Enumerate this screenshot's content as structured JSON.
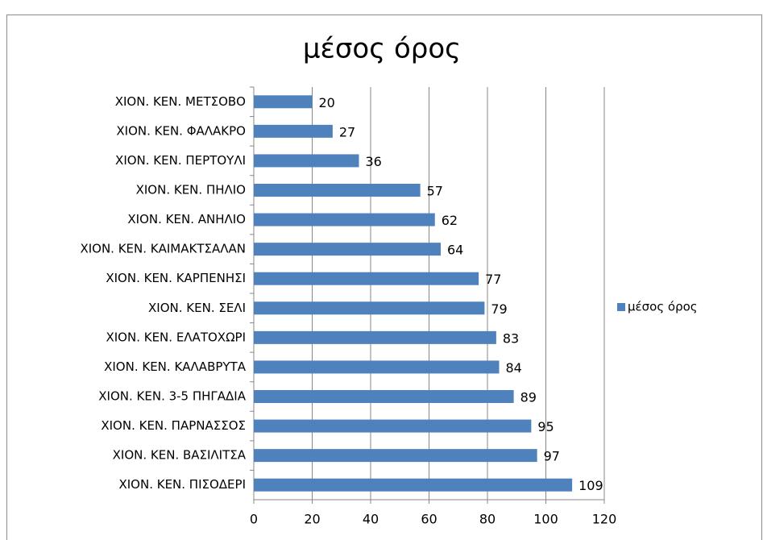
{
  "chart_data": {
    "type": "bar",
    "orientation": "horizontal",
    "title": "μέσος όρος",
    "categories": [
      "ΧΙΟΝ. ΚΕΝ. ΜΕΤΣΟΒΟ",
      "ΧΙΟΝ. ΚΕΝ. ΦΑΛΑΚΡΟ",
      "ΧΙΟΝ. ΚΕΝ. ΠΕΡΤΟΥΛΙ",
      "ΧΙΟΝ. ΚΕΝ. ΠΗΛΙΟ",
      "ΧΙΟΝ. ΚΕΝ. ΑΝΗΛΙΟ",
      "ΧΙΟΝ. ΚΕΝ. ΚΑΙΜΑΚΤΣΑΛΑΝ",
      "ΧΙΟΝ. ΚΕΝ. ΚΑΡΠΕΝΗΣΙ",
      "ΧΙΟΝ. ΚΕΝ. ΣΕΛΙ",
      "ΧΙΟΝ. ΚΕΝ. ΕΛΑΤΟΧΩΡΙ",
      "ΧΙΟΝ. ΚΕΝ. ΚΑΛΑΒΡΥΤΑ",
      "ΧΙΟΝ. ΚΕΝ. 3-5 ΠΗΓΑΔΙΑ",
      "ΧΙΟΝ. ΚΕΝ. ΠΑΡΝΑΣΣΟΣ",
      "ΧΙΟΝ. ΚΕΝ. ΒΑΣΙΛΙΤΣΑ",
      "ΧΙΟΝ. ΚΕΝ. ΠΙΣΟΔΕΡΙ"
    ],
    "series": [
      {
        "name": "μέσος όρος",
        "color": "#4f81bd",
        "values": [
          20,
          27,
          36,
          57,
          62,
          64,
          77,
          79,
          83,
          84,
          89,
          95,
          97,
          109
        ]
      }
    ],
    "xlim": [
      0,
      120
    ],
    "xticks": [
      0,
      20,
      40,
      60,
      80,
      100,
      120
    ],
    "grid": true,
    "legend": "right"
  }
}
